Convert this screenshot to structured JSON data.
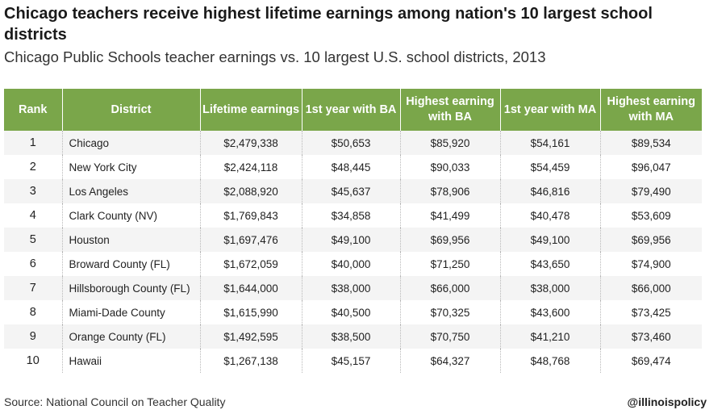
{
  "title": "Chicago teachers receive highest lifetime earnings among nation's 10 largest school districts",
  "subtitle": "Chicago Public Schools teacher earnings vs. 10 largest U.S. school districts, 2013",
  "source": "Source: National Council on Teacher Quality",
  "handle": "@illinoispolicy",
  "colors": {
    "header_bg": "#7aa64a",
    "stripe": "#f4f4f4"
  },
  "chart_data": {
    "type": "table",
    "title": "Chicago teachers receive highest lifetime earnings among nation's 10 largest school districts",
    "subtitle": "Chicago Public Schools teacher earnings vs. 10 largest U.S. school districts, 2013",
    "columns": [
      "Rank",
      "District",
      "Lifetime earnings",
      "1st year with BA",
      "Highest earning with BA",
      "1st year with MA",
      "Highest earning with MA"
    ],
    "rows": [
      [
        "1",
        "Chicago",
        "$2,479,338",
        "$50,653",
        "$85,920",
        "$54,161",
        "$89,534"
      ],
      [
        "2",
        "New York City",
        "$2,424,118",
        "$48,445",
        "$90,033",
        "$54,459",
        "$96,047"
      ],
      [
        "3",
        "Los Angeles",
        "$2,088,920",
        "$45,637",
        "$78,906",
        "$46,816",
        "$79,490"
      ],
      [
        "4",
        "Clark County (NV)",
        "$1,769,843",
        "$34,858",
        "$41,499",
        "$40,478",
        "$53,609"
      ],
      [
        "5",
        "Houston",
        "$1,697,476",
        "$49,100",
        "$69,956",
        "$49,100",
        "$69,956"
      ],
      [
        "6",
        "Broward County (FL)",
        "$1,672,059",
        "$40,000",
        "$71,250",
        "$43,650",
        "$74,900"
      ],
      [
        "7",
        "Hillsborough County (FL)",
        "$1,644,000",
        "$38,000",
        "$66,000",
        "$38,000",
        "$66,000"
      ],
      [
        "8",
        "Miami-Dade County",
        "$1,615,990",
        "$40,500",
        "$70,325",
        "$43,600",
        "$73,425"
      ],
      [
        "9",
        "Orange County (FL)",
        "$1,492,595",
        "$38,500",
        "$70,750",
        "$41,210",
        "$73,460"
      ],
      [
        "10",
        "Hawaii",
        "$1,267,138",
        "$45,157",
        "$64,327",
        "$48,768",
        "$69,474"
      ]
    ]
  }
}
